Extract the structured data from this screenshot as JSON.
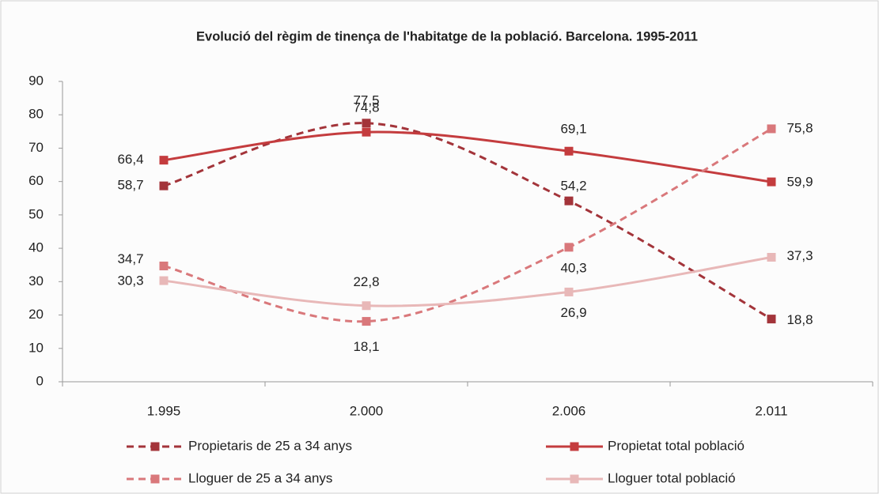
{
  "chart_data": {
    "type": "line",
    "title": "Evolució del règim de tinença de l'habitatge de la població. Barcelona. 1995-2011",
    "categories": [
      "1.995",
      "2.000",
      "2.006",
      "2.011"
    ],
    "series": [
      {
        "name": "Propietaris de 25 a 34 anys",
        "color": "#a3343a",
        "dashed": true,
        "values": [
          58.7,
          77.5,
          54.2,
          18.8
        ],
        "value_labels": [
          "58,7",
          "77,5",
          "54,2",
          "18,8"
        ]
      },
      {
        "name": "Propietat total població",
        "color": "#c43c3e",
        "dashed": false,
        "values": [
          66.4,
          74.8,
          69.1,
          59.9
        ],
        "value_labels": [
          "66,4",
          "74,8",
          "69,1",
          "59,9"
        ]
      },
      {
        "name": "Lloguer de 25 a 34 anys",
        "color": "#d9787b",
        "dashed": true,
        "values": [
          34.7,
          18.1,
          40.3,
          75.8
        ],
        "value_labels": [
          "34,7",
          "18,1",
          "40,3",
          "75,8"
        ]
      },
      {
        "name": "Lloguer total població",
        "color": "#e8b8b8",
        "dashed": false,
        "values": [
          30.3,
          22.8,
          26.9,
          37.3
        ],
        "value_labels": [
          "30,3",
          "22,8",
          "26,9",
          "37,3"
        ]
      }
    ],
    "ylim": [
      0,
      90
    ],
    "yticks": [
      0,
      10,
      20,
      30,
      40,
      50,
      60,
      70,
      80,
      90
    ],
    "grid": false
  }
}
